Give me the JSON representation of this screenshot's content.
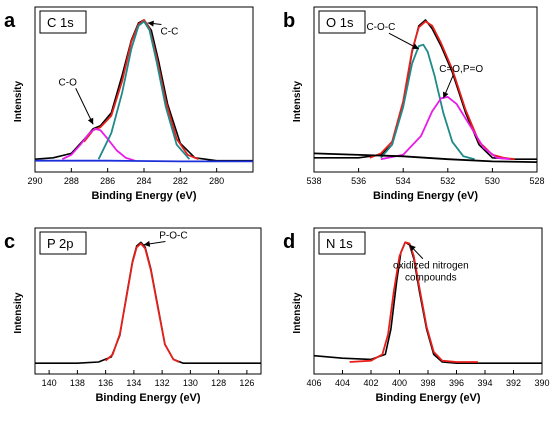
{
  "chart_data": [
    {
      "type": "line",
      "panel_letter": "a",
      "title": "C 1s",
      "xlabel": "Binding Energy (eV)",
      "ylabel": "Intensity",
      "xlim": [
        290,
        278
      ],
      "x_reversed": true,
      "xticks": [
        "290",
        "288",
        "286",
        "284",
        "282",
        "280"
      ],
      "xtick_values": [
        290,
        288,
        286,
        284,
        282,
        280
      ],
      "ylim": [
        0,
        1
      ],
      "grid": false,
      "series": [
        {
          "color": "#000000",
          "x": [
            290,
            289,
            288,
            287.2,
            286.8,
            286.4,
            285.8,
            285.2,
            284.7,
            284.3,
            284.0,
            283.6,
            283.2,
            282.7,
            282.0,
            281.2,
            280,
            279,
            278
          ],
          "y": [
            0.04,
            0.05,
            0.08,
            0.19,
            0.25,
            0.27,
            0.36,
            0.62,
            0.86,
            0.98,
            1.0,
            0.93,
            0.72,
            0.42,
            0.15,
            0.05,
            0.03,
            0.03,
            0.03
          ]
        },
        {
          "color": "#e8201c",
          "x": [
            287.3,
            286.8,
            286.4,
            285.8,
            285.2,
            284.7,
            284.3,
            284.0,
            283.7,
            283.3,
            282.8,
            282.2,
            281.6,
            281.0
          ],
          "y": [
            0.16,
            0.24,
            0.26,
            0.34,
            0.58,
            0.85,
            0.97,
            1.0,
            0.94,
            0.74,
            0.44,
            0.18,
            0.07,
            0.04
          ]
        },
        {
          "color": "#e81ce8",
          "x": [
            288.5,
            288.0,
            287.5,
            287.0,
            286.7,
            286.4,
            286.0,
            285.5,
            285.0,
            284.5
          ],
          "y": [
            0.04,
            0.07,
            0.14,
            0.22,
            0.25,
            0.24,
            0.18,
            0.1,
            0.05,
            0.03
          ]
        },
        {
          "color": "#1f8a8a",
          "x": [
            286.5,
            285.8,
            285.2,
            284.7,
            284.3,
            284.0,
            283.7,
            283.3,
            282.8,
            282.2,
            281.5
          ],
          "y": [
            0.04,
            0.22,
            0.5,
            0.8,
            0.96,
            0.99,
            0.93,
            0.71,
            0.4,
            0.14,
            0.04
          ]
        },
        {
          "color": "#1c2fd8",
          "x": [
            290,
            286,
            282,
            280,
            278
          ],
          "y": [
            0.03,
            0.03,
            0.025,
            0.025,
            0.025
          ]
        }
      ],
      "annotations": [
        {
          "text": "C-C",
          "x": 282.6,
          "y": 0.9,
          "arrow_to": [
            283.8,
            0.98
          ]
        },
        {
          "text": "C-O",
          "x": 288.2,
          "y": 0.55,
          "arrow_to": [
            286.8,
            0.28
          ]
        }
      ]
    },
    {
      "type": "line",
      "panel_letter": "b",
      "title": "O 1s",
      "xlabel": "Binding Energy (eV)",
      "ylabel": "Intensity",
      "xlim": [
        538,
        528
      ],
      "x_reversed": true,
      "xticks": [
        "538",
        "536",
        "534",
        "532",
        "530",
        "528"
      ],
      "xtick_values": [
        538,
        536,
        534,
        532,
        530,
        528
      ],
      "ylim": [
        0,
        1
      ],
      "grid": false,
      "series": [
        {
          "color": "#000000",
          "x": [
            538,
            536,
            535,
            534.5,
            534.0,
            533.6,
            533.3,
            533.0,
            532.7,
            532.3,
            531.8,
            531.2,
            530.6,
            530.0,
            529,
            528
          ],
          "y": [
            0.05,
            0.05,
            0.07,
            0.14,
            0.42,
            0.78,
            0.96,
            1.0,
            0.94,
            0.82,
            0.64,
            0.36,
            0.14,
            0.05,
            0.04,
            0.04
          ]
        },
        {
          "color": "#e8201c",
          "x": [
            535.5,
            535.0,
            534.5,
            534.0,
            533.6,
            533.3,
            533.0,
            532.7,
            532.3,
            531.8,
            531.2,
            530.6,
            530.0,
            529.5,
            529.0
          ],
          "y": [
            0.05,
            0.08,
            0.16,
            0.44,
            0.79,
            0.95,
            0.99,
            0.96,
            0.84,
            0.66,
            0.38,
            0.16,
            0.07,
            0.05,
            0.04
          ]
        },
        {
          "color": "#1f8a8a",
          "x": [
            535.0,
            534.5,
            534.0,
            533.6,
            533.3,
            533.1,
            532.9,
            532.6,
            532.2,
            531.8,
            531.3,
            530.8
          ],
          "y": [
            0.05,
            0.14,
            0.4,
            0.7,
            0.82,
            0.83,
            0.78,
            0.62,
            0.36,
            0.16,
            0.06,
            0.04
          ]
        },
        {
          "color": "#e81ce8",
          "x": [
            535.0,
            534.0,
            533.2,
            532.7,
            532.3,
            532.0,
            531.6,
            531.0,
            530.4,
            529.8,
            529.2
          ],
          "y": [
            0.04,
            0.07,
            0.2,
            0.37,
            0.46,
            0.47,
            0.42,
            0.27,
            0.12,
            0.05,
            0.04
          ]
        },
        {
          "color": "#000000",
          "x": [
            538,
            534,
            532,
            530,
            528
          ],
          "y": [
            0.08,
            0.06,
            0.04,
            0.025,
            0.02
          ]
        }
      ],
      "annotations": [
        {
          "text": "C-O-C",
          "x": 535.0,
          "y": 0.93,
          "arrow_to": [
            533.3,
            0.8
          ]
        },
        {
          "text": "C=O,P=O",
          "x": 531.4,
          "y": 0.64,
          "arrow_to": [
            532.2,
            0.46
          ]
        }
      ]
    },
    {
      "type": "line",
      "panel_letter": "c",
      "title": "P 2p",
      "xlabel": "Binding Energy (eV)",
      "ylabel": "Intensity",
      "xlim": [
        141,
        125
      ],
      "x_reversed": true,
      "xticks": [
        "140",
        "138",
        "136",
        "134",
        "132",
        "130",
        "128",
        "126"
      ],
      "xtick_values": [
        140,
        138,
        136,
        134,
        132,
        130,
        128,
        126
      ],
      "ylim": [
        0,
        1
      ],
      "grid": false,
      "series": [
        {
          "color": "#000000",
          "x": [
            141,
            138,
            136.5,
            135.6,
            135.0,
            134.5,
            134.1,
            133.8,
            133.5,
            133.2,
            132.8,
            132.3,
            131.8,
            131.2,
            130.5,
            128,
            125
          ],
          "y": [
            0.03,
            0.03,
            0.04,
            0.08,
            0.25,
            0.58,
            0.84,
            0.96,
            0.99,
            0.95,
            0.78,
            0.48,
            0.18,
            0.06,
            0.03,
            0.03,
            0.03
          ]
        },
        {
          "color": "#e8201c",
          "x": [
            136.0,
            135.5,
            135.0,
            134.5,
            134.1,
            133.8,
            133.5,
            133.2,
            132.8,
            132.3,
            131.8,
            131.2,
            130.8
          ],
          "y": [
            0.05,
            0.1,
            0.26,
            0.57,
            0.83,
            0.95,
            0.98,
            0.94,
            0.77,
            0.47,
            0.18,
            0.06,
            0.04
          ]
        }
      ],
      "annotations": [
        {
          "text": "P-O-C",
          "x": 131.2,
          "y": 1.02,
          "arrow_to": [
            133.3,
            0.97
          ]
        }
      ]
    },
    {
      "type": "line",
      "panel_letter": "d",
      "title": "N 1s",
      "xlabel": "Binding Energy (eV)",
      "ylabel": "Intensity",
      "xlim": [
        406,
        390
      ],
      "x_reversed": true,
      "xticks": [
        "406",
        "404",
        "402",
        "400",
        "398",
        "396",
        "394",
        "392",
        "390"
      ],
      "xtick_values": [
        406,
        404,
        402,
        400,
        398,
        396,
        394,
        392,
        390
      ],
      "ylim": [
        0,
        1
      ],
      "grid": false,
      "series": [
        {
          "color": "#000000",
          "x": [
            406,
            404,
            402,
            401.0,
            400.6,
            400.2,
            399.9,
            399.6,
            399.3,
            399.0,
            398.6,
            398.1,
            397.6,
            397.0,
            396,
            394,
            392,
            390
          ],
          "y": [
            0.09,
            0.07,
            0.06,
            0.1,
            0.3,
            0.68,
            0.91,
            0.99,
            0.97,
            0.86,
            0.6,
            0.3,
            0.1,
            0.04,
            0.03,
            0.03,
            0.03,
            0.03
          ]
        },
        {
          "color": "#e8201c",
          "x": [
            403.5,
            402.0,
            401.2,
            400.8,
            400.4,
            400.0,
            399.6,
            399.3,
            399.0,
            398.6,
            398.1,
            397.6,
            397.0,
            396.0,
            394.5
          ],
          "y": [
            0.04,
            0.05,
            0.1,
            0.26,
            0.6,
            0.88,
            0.99,
            0.98,
            0.88,
            0.63,
            0.32,
            0.12,
            0.05,
            0.04,
            0.04
          ]
        }
      ],
      "annotations": [
        {
          "text": "oxidized nitrogen",
          "text2": "compounds",
          "x": 397.8,
          "y": 0.78,
          "arrow_to": [
            399.3,
            0.97
          ]
        }
      ]
    }
  ]
}
